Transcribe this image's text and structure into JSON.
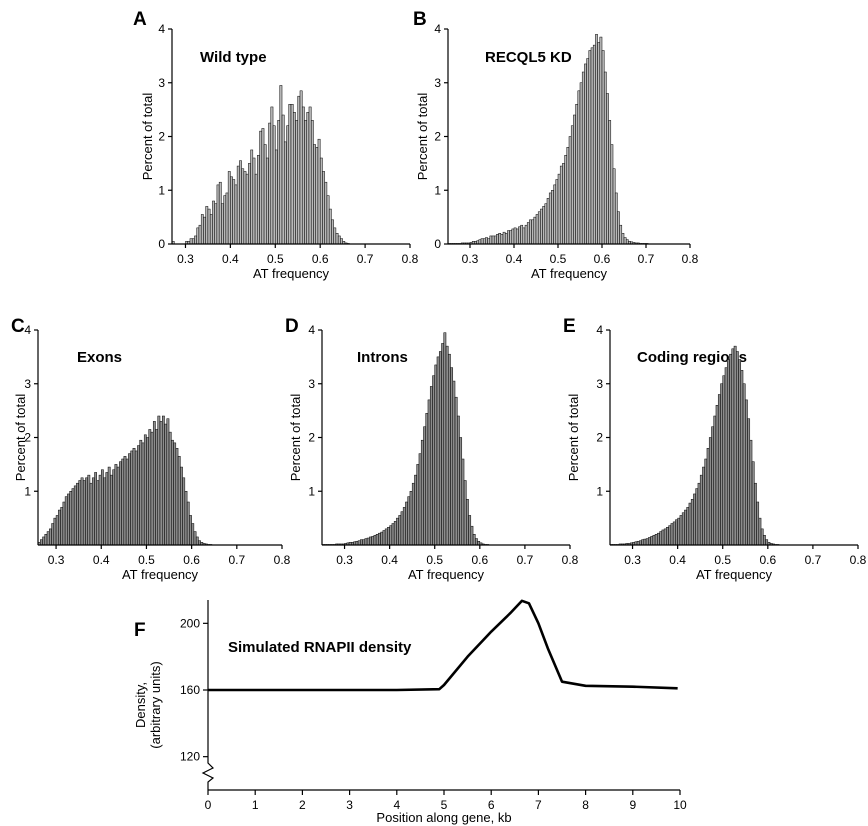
{
  "chart_data": [
    {
      "type": "bar",
      "panel": "A",
      "title": "Wild type",
      "xlabel": "AT frequency",
      "ylabel": "Percent of total",
      "xlim": [
        0.27,
        0.8
      ],
      "ylim": [
        0,
        4
      ],
      "xticks": [
        "0.3",
        "0.4",
        "0.5",
        "0.6",
        "0.7",
        "0.8"
      ],
      "yticks": [
        "0",
        "1",
        "2",
        "3",
        "4"
      ],
      "bin_start": 0.27,
      "bin_width": 0.005,
      "values": [
        0.05,
        0,
        0,
        0,
        0,
        0,
        0.05,
        0.05,
        0.1,
        0.1,
        0.15,
        0.3,
        0.35,
        0.55,
        0.5,
        0.7,
        0.65,
        0.55,
        0.8,
        0.75,
        1.1,
        1.15,
        0.75,
        0.9,
        0.95,
        1.35,
        1.25,
        1.2,
        1.1,
        1.45,
        1.55,
        1.4,
        1.35,
        1.3,
        1.5,
        1.75,
        1.6,
        1.3,
        1.65,
        2.1,
        2.15,
        1.85,
        1.6,
        2.25,
        2.55,
        2.2,
        1.75,
        2.3,
        2.95,
        2.4,
        1.9,
        2.2,
        2.6,
        2.6,
        2.45,
        2.3,
        2.75,
        2.85,
        2.55,
        2.3,
        2.45,
        2.55,
        2.3,
        1.85,
        1.8,
        1.95,
        1.6,
        1.35,
        1.15,
        0.9,
        0.65,
        0.45,
        0.3,
        0.2,
        0.15,
        0.1,
        0.05,
        0.02,
        0.01,
        0,
        0,
        0,
        0,
        0,
        0,
        0,
        0,
        0,
        0,
        0,
        0,
        0,
        0,
        0,
        0,
        0,
        0,
        0,
        0,
        0,
        0,
        0,
        0,
        0,
        0,
        0
      ]
    },
    {
      "type": "bar",
      "panel": "B",
      "title": "RECQL5 KD",
      "xlabel": "AT frequency",
      "ylabel": "Percent of total",
      "xlim": [
        0.25,
        0.8
      ],
      "ylim": [
        0,
        4
      ],
      "xticks": [
        "0.3",
        "0.4",
        "0.5",
        "0.6",
        "0.7",
        "0.8"
      ],
      "yticks": [
        "0",
        "1",
        "2",
        "3",
        "4"
      ],
      "bin_start": 0.25,
      "bin_width": 0.005,
      "values": [
        0.01,
        0.01,
        0.01,
        0.01,
        0.01,
        0.01,
        0.02,
        0.02,
        0.02,
        0.02,
        0.03,
        0.05,
        0.05,
        0.06,
        0.08,
        0.1,
        0.1,
        0.12,
        0.1,
        0.15,
        0.15,
        0.15,
        0.18,
        0.2,
        0.18,
        0.22,
        0.2,
        0.25,
        0.25,
        0.28,
        0.3,
        0.28,
        0.32,
        0.35,
        0.3,
        0.35,
        0.4,
        0.45,
        0.45,
        0.5,
        0.55,
        0.6,
        0.65,
        0.7,
        0.75,
        0.85,
        0.95,
        1.0,
        1.1,
        1.2,
        1.3,
        1.45,
        1.5,
        1.65,
        1.8,
        2.0,
        2.2,
        2.4,
        2.6,
        2.85,
        3.0,
        3.2,
        3.35,
        3.45,
        3.6,
        3.65,
        3.7,
        3.9,
        3.75,
        3.85,
        3.6,
        3.2,
        2.8,
        2.3,
        1.85,
        1.4,
        0.95,
        0.6,
        0.35,
        0.2,
        0.12,
        0.08,
        0.05,
        0.04,
        0.03,
        0.02,
        0.02,
        0.01,
        0.01,
        0.01,
        0.01,
        0,
        0,
        0,
        0,
        0,
        0,
        0,
        0,
        0,
        0,
        0,
        0,
        0,
        0,
        0,
        0,
        0,
        0,
        0
      ]
    },
    {
      "type": "bar",
      "panel": "C",
      "title": "Exons",
      "xlabel": "AT frequency",
      "ylabel": "Percent of total",
      "xlim": [
        0.26,
        0.8
      ],
      "ylim": [
        0,
        4
      ],
      "xticks": [
        "0.3",
        "0.4",
        "0.5",
        "0.6",
        "0.7",
        "0.8"
      ],
      "yticks": [
        "1",
        "2",
        "3",
        "4"
      ],
      "bin_start": 0.26,
      "bin_width": 0.005,
      "values": [
        0.05,
        0.1,
        0.15,
        0.2,
        0.25,
        0.3,
        0.4,
        0.5,
        0.55,
        0.65,
        0.7,
        0.8,
        0.9,
        0.95,
        1.0,
        1.05,
        1.1,
        1.15,
        1.2,
        1.25,
        1.2,
        1.25,
        1.3,
        1.15,
        1.25,
        1.35,
        1.2,
        1.3,
        1.4,
        1.25,
        1.35,
        1.45,
        1.3,
        1.4,
        1.5,
        1.45,
        1.55,
        1.6,
        1.65,
        1.6,
        1.7,
        1.75,
        1.8,
        1.75,
        1.85,
        1.95,
        1.9,
        2.05,
        2.0,
        2.15,
        2.1,
        2.3,
        2.15,
        2.4,
        2.3,
        2.4,
        2.25,
        2.35,
        2.1,
        1.95,
        1.9,
        1.8,
        1.65,
        1.45,
        1.25,
        1.0,
        0.8,
        0.55,
        0.4,
        0.25,
        0.15,
        0.08,
        0.05,
        0.03,
        0.02,
        0.01,
        0.01,
        0,
        0,
        0,
        0,
        0,
        0,
        0,
        0,
        0,
        0,
        0,
        0,
        0,
        0,
        0,
        0,
        0,
        0,
        0,
        0,
        0,
        0,
        0,
        0,
        0,
        0,
        0,
        0,
        0,
        0,
        0,
        0
      ]
    },
    {
      "type": "bar",
      "panel": "D",
      "title": "Introns",
      "xlabel": "AT frequency",
      "ylabel": "Percent of total",
      "xlim": [
        0.25,
        0.8
      ],
      "ylim": [
        0,
        4
      ],
      "xticks": [
        "0.3",
        "0.4",
        "0.5",
        "0.6",
        "0.7",
        "0.8"
      ],
      "yticks": [
        "1",
        "2",
        "3",
        "4"
      ],
      "bin_start": 0.25,
      "bin_width": 0.005,
      "values": [
        0.01,
        0.01,
        0.01,
        0.01,
        0.01,
        0.01,
        0.02,
        0.02,
        0.02,
        0.02,
        0.03,
        0.04,
        0.05,
        0.05,
        0.06,
        0.07,
        0.08,
        0.1,
        0.1,
        0.12,
        0.13,
        0.15,
        0.16,
        0.18,
        0.2,
        0.22,
        0.24,
        0.27,
        0.3,
        0.33,
        0.36,
        0.4,
        0.44,
        0.5,
        0.55,
        0.62,
        0.7,
        0.8,
        0.9,
        1.0,
        1.15,
        1.3,
        1.5,
        1.7,
        1.95,
        2.2,
        2.45,
        2.7,
        2.95,
        3.15,
        3.35,
        3.5,
        3.6,
        3.75,
        3.95,
        3.7,
        3.55,
        3.3,
        3.05,
        2.75,
        2.4,
        2.0,
        1.6,
        1.2,
        0.85,
        0.55,
        0.35,
        0.2,
        0.12,
        0.07,
        0.04,
        0.02,
        0.01,
        0.01,
        0,
        0,
        0,
        0,
        0,
        0,
        0,
        0,
        0,
        0,
        0,
        0,
        0,
        0,
        0,
        0,
        0,
        0,
        0,
        0,
        0,
        0,
        0,
        0,
        0,
        0,
        0,
        0,
        0,
        0,
        0,
        0,
        0,
        0,
        0,
        0
      ]
    },
    {
      "type": "bar",
      "panel": "E",
      "title": "Coding regions",
      "xlabel": "AT frequency",
      "ylabel": "Percent of total",
      "xlim": [
        0.25,
        0.8
      ],
      "ylim": [
        0,
        4
      ],
      "xticks": [
        "0.3",
        "0.4",
        "0.5",
        "0.6",
        "0.7",
        "0.8"
      ],
      "yticks": [
        "1",
        "2",
        "3",
        "4"
      ],
      "bin_start": 0.25,
      "bin_width": 0.005,
      "values": [
        0.01,
        0.01,
        0.01,
        0.01,
        0.02,
        0.02,
        0.02,
        0.03,
        0.03,
        0.04,
        0.05,
        0.06,
        0.07,
        0.08,
        0.1,
        0.11,
        0.12,
        0.14,
        0.16,
        0.18,
        0.2,
        0.22,
        0.25,
        0.28,
        0.3,
        0.33,
        0.36,
        0.4,
        0.43,
        0.47,
        0.5,
        0.55,
        0.6,
        0.65,
        0.7,
        0.78,
        0.85,
        0.95,
        1.05,
        1.15,
        1.3,
        1.45,
        1.6,
        1.8,
        2.0,
        2.2,
        2.4,
        2.6,
        2.8,
        3.0,
        3.15,
        3.3,
        3.45,
        3.55,
        3.65,
        3.7,
        3.6,
        3.45,
        3.25,
        3.0,
        2.7,
        2.35,
        1.95,
        1.55,
        1.15,
        0.8,
        0.5,
        0.3,
        0.18,
        0.1,
        0.05,
        0.03,
        0.02,
        0.01,
        0.01,
        0,
        0,
        0,
        0,
        0,
        0,
        0,
        0,
        0,
        0,
        0,
        0,
        0,
        0,
        0,
        0,
        0,
        0,
        0,
        0,
        0,
        0,
        0,
        0,
        0,
        0,
        0,
        0,
        0,
        0,
        0,
        0,
        0,
        0,
        0,
        0
      ]
    },
    {
      "type": "line",
      "panel": "F",
      "title": "Simulated RNAPII density",
      "xlabel": "Position along gene, kb",
      "ylabel": [
        "Density,",
        "(arbitrary units)"
      ],
      "xlim": [
        0,
        10
      ],
      "ylim": [
        100,
        220
      ],
      "xticks": [
        "0",
        "1",
        "2",
        "3",
        "4",
        "5",
        "6",
        "7",
        "8",
        "9",
        "10"
      ],
      "yticks": [
        "120",
        "160",
        "200"
      ],
      "x": [
        0,
        1,
        2,
        3,
        4,
        4.9,
        5.0,
        5.5,
        6.0,
        6.4,
        6.65,
        6.8,
        7.0,
        7.2,
        7.5,
        8,
        9,
        9.95
      ],
      "y": [
        160,
        160,
        160,
        160,
        160,
        160.5,
        163,
        180,
        195,
        206,
        213.5,
        212,
        200,
        185,
        165,
        162.5,
        162,
        161
      ]
    }
  ]
}
